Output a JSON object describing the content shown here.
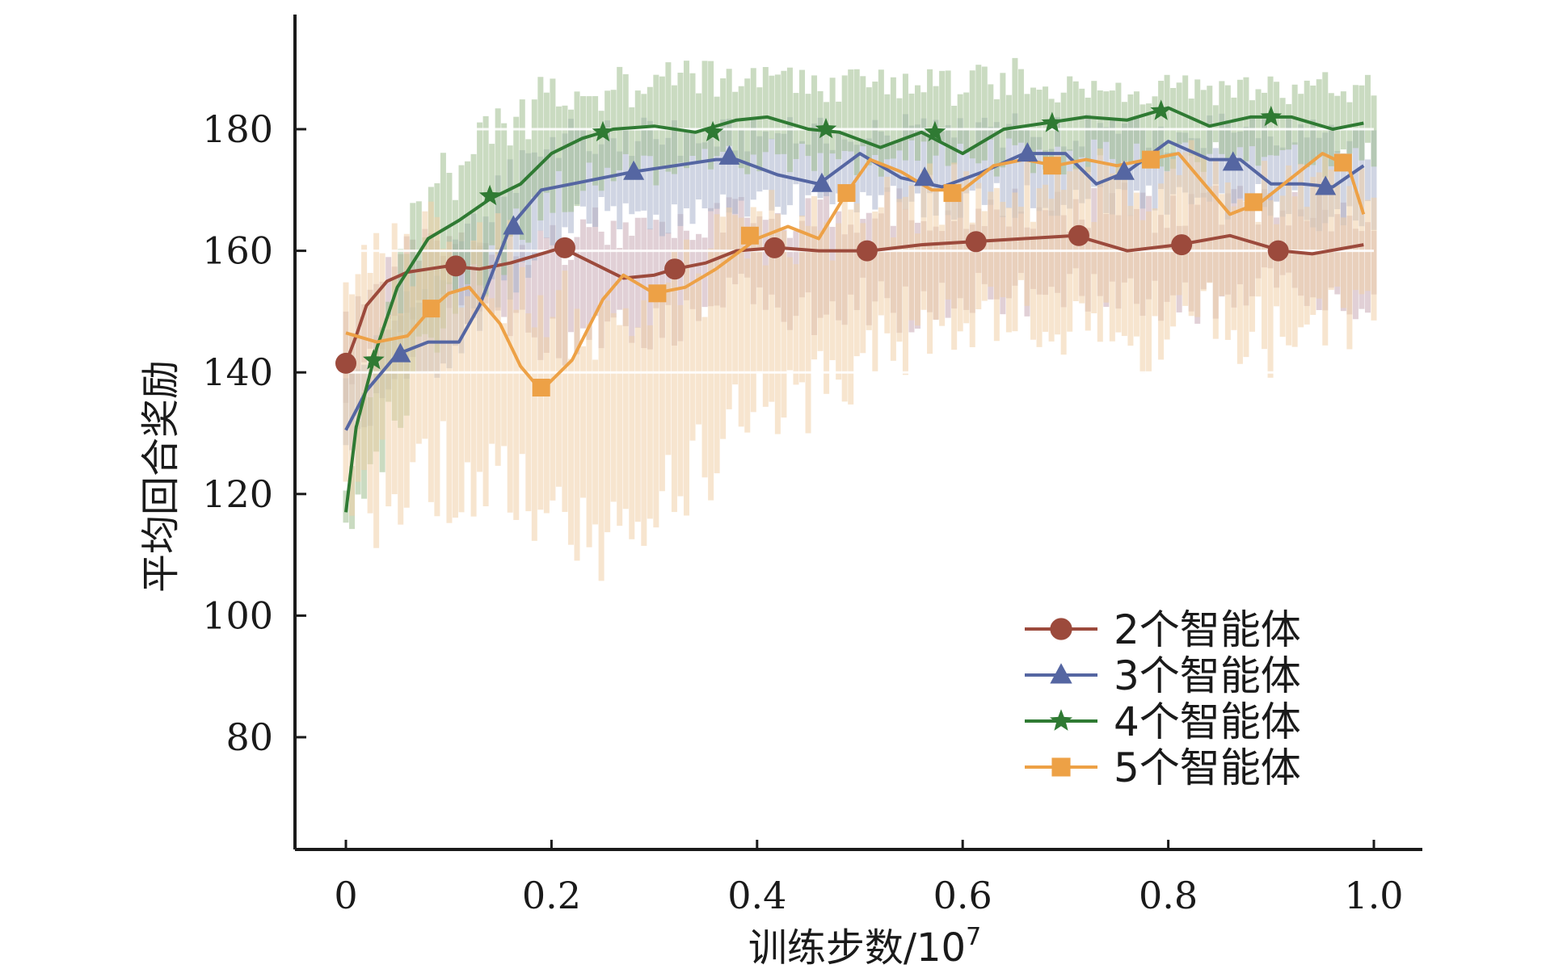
{
  "chart_data": {
    "type": "line",
    "title": "",
    "xlabel": "训练步数/10",
    "xlabel_sup": "7",
    "ylabel": "平均回合奖励",
    "xlim": [
      -0.05,
      1.05
    ],
    "ylim": [
      66,
      203
    ],
    "xticks": [
      0,
      0.2,
      0.4,
      0.6,
      0.8,
      1.0
    ],
    "xtick_labels": [
      "0",
      "0.2",
      "0.4",
      "0.6",
      "0.8",
      "1.0"
    ],
    "yticks": [
      80,
      100,
      120,
      140,
      160,
      180
    ],
    "ytick_labels": [
      "80",
      "100",
      "120",
      "140",
      "160",
      "180"
    ],
    "grid": "horizontal lines at 140, 160, 180 behind data",
    "legend_position": "lower-right",
    "series": [
      {
        "name": "2个智能体",
        "color": "#9c4a3c",
        "band_color": "#c9a9b4",
        "marker": "circle",
        "band_low": [
          135,
          145,
          148,
          146,
          140,
          143,
          142,
          148,
          150,
          145,
          148,
          145,
          150,
          148,
          150,
          150,
          148,
          148,
          152,
          150,
          148
        ],
        "band_high": [
          150,
          162,
          165,
          165,
          166,
          168,
          166,
          168,
          170,
          170,
          170,
          172,
          170,
          172,
          170,
          172,
          170,
          172,
          170,
          170,
          168
        ],
        "x": [
          0,
          0.01,
          0.02,
          0.04,
          0.06,
          0.08,
          0.1,
          0.13,
          0.16,
          0.19,
          0.21,
          0.24,
          0.27,
          0.3,
          0.32,
          0.35,
          0.38,
          0.42,
          0.46,
          0.51,
          0.56,
          0.61,
          0.66,
          0.71,
          0.76,
          0.81,
          0.86,
          0.91,
          0.94,
          0.99
        ],
        "y": [
          141.5,
          146,
          151,
          155,
          156.5,
          157,
          157.5,
          157,
          158,
          159.5,
          160.5,
          158,
          155.5,
          156,
          157,
          158,
          160,
          160.5,
          160,
          160,
          161,
          161.5,
          162,
          162.5,
          160,
          161,
          162.5,
          160,
          159.5,
          161
        ],
        "marker_x": [
          0,
          0.107,
          0.213,
          0.32,
          0.417,
          0.507,
          0.613,
          0.713,
          0.813,
          0.907
        ],
        "marker_y": [
          141.5,
          157.5,
          160.5,
          157,
          160.5,
          160,
          161.5,
          162.5,
          161,
          160
        ]
      },
      {
        "name": "3个智能体",
        "color": "#5566a2",
        "band_color": "#aab2cc",
        "marker": "triangle",
        "band_low": [
          125,
          135,
          140,
          150,
          160,
          162,
          162,
          162,
          165,
          165,
          165,
          165,
          165,
          165,
          165,
          165,
          165,
          165,
          165,
          163,
          163
        ],
        "band_high": [
          140,
          152,
          160,
          175,
          182,
          182,
          182,
          182,
          182,
          182,
          182,
          183,
          182,
          183,
          182,
          183,
          182,
          183,
          182,
          182,
          180
        ],
        "x": [
          0,
          0.02,
          0.05,
          0.08,
          0.11,
          0.13,
          0.16,
          0.19,
          0.22,
          0.25,
          0.28,
          0.32,
          0.36,
          0.38,
          0.42,
          0.46,
          0.5,
          0.54,
          0.58,
          0.62,
          0.66,
          0.7,
          0.73,
          0.76,
          0.8,
          0.84,
          0.87,
          0.9,
          0.93,
          0.96,
          0.99
        ],
        "y": [
          130.5,
          137,
          143,
          145,
          145,
          151,
          164,
          170,
          171,
          172,
          173,
          174,
          175,
          175,
          172.5,
          171,
          176,
          172,
          170.5,
          173,
          176,
          176,
          171,
          173,
          178,
          175,
          175,
          171,
          171,
          170.5,
          174
        ],
        "marker_x": [
          0.053,
          0.163,
          0.28,
          0.373,
          0.463,
          0.563,
          0.663,
          0.757,
          0.863,
          0.953
        ],
        "marker_y": [
          143,
          164,
          173,
          175.5,
          171,
          172,
          176,
          173,
          174.5,
          170.5
        ]
      },
      {
        "name": "4个智能体",
        "color": "#2f7a33",
        "band_color": "#9ebd8e",
        "marker": "star",
        "band_low": [
          112,
          128,
          145,
          155,
          165,
          168,
          170,
          170,
          172,
          172,
          172,
          172,
          172,
          172,
          172,
          172,
          172,
          172,
          172,
          172,
          172
        ],
        "band_high": [
          125,
          165,
          178,
          185,
          190,
          190,
          192,
          192,
          192,
          190,
          190,
          190,
          190,
          192,
          190,
          190,
          190,
          190,
          190,
          190,
          190
        ],
        "x": [
          0,
          0.01,
          0.03,
          0.05,
          0.08,
          0.11,
          0.14,
          0.17,
          0.2,
          0.23,
          0.26,
          0.3,
          0.34,
          0.38,
          0.41,
          0.45,
          0.48,
          0.52,
          0.56,
          0.6,
          0.64,
          0.68,
          0.72,
          0.76,
          0.8,
          0.84,
          0.88,
          0.92,
          0.96,
          0.99
        ],
        "y": [
          117,
          131,
          144,
          154,
          162,
          165,
          168.5,
          171,
          176,
          178.5,
          180,
          180.5,
          179.5,
          181.5,
          182,
          180,
          179.5,
          177,
          179.5,
          176,
          180,
          181,
          182,
          181.5,
          183.5,
          180.5,
          182,
          182,
          180,
          181
        ],
        "marker_x": [
          0.027,
          0.14,
          0.25,
          0.357,
          0.467,
          0.573,
          0.687,
          0.793,
          0.9
        ],
        "marker_y": [
          142,
          169,
          179.5,
          179.5,
          180,
          179.5,
          181,
          183,
          182
        ]
      },
      {
        "name": "5个智能体",
        "color": "#eda146",
        "band_color": "#f0cfa8",
        "marker": "square",
        "band_low": [
          105,
          112,
          115,
          112,
          110,
          105,
          112,
          118,
          125,
          130,
          135,
          140,
          142,
          145,
          140,
          138,
          140,
          142,
          138,
          140,
          145
        ],
        "band_high": [
          160,
          168,
          170,
          168,
          160,
          152,
          160,
          166,
          170,
          172,
          172,
          174,
          175,
          175,
          178,
          178,
          178,
          180,
          178,
          178,
          178
        ],
        "x": [
          0,
          0.03,
          0.06,
          0.083,
          0.1,
          0.12,
          0.15,
          0.17,
          0.19,
          0.22,
          0.25,
          0.27,
          0.3,
          0.33,
          0.36,
          0.4,
          0.43,
          0.46,
          0.487,
          0.51,
          0.54,
          0.57,
          0.6,
          0.63,
          0.66,
          0.69,
          0.72,
          0.75,
          0.78,
          0.81,
          0.84,
          0.86,
          0.89,
          0.92,
          0.95,
          0.975,
          0.99
        ],
        "y": [
          146.5,
          145,
          146,
          150.5,
          153,
          154,
          148,
          141,
          137,
          142,
          152,
          156,
          153,
          154,
          157,
          162,
          164,
          162,
          169.5,
          175,
          173,
          170,
          170,
          174,
          175,
          174,
          175,
          174,
          175,
          176,
          170,
          166,
          168,
          172,
          176,
          174,
          166
        ],
        "marker_x": [
          0.083,
          0.19,
          0.303,
          0.393,
          0.487,
          0.59,
          0.687,
          0.783,
          0.883,
          0.97
        ],
        "marker_y": [
          150.5,
          137.5,
          153,
          162.5,
          169.5,
          169.5,
          174,
          175,
          168,
          174.5
        ]
      }
    ]
  }
}
